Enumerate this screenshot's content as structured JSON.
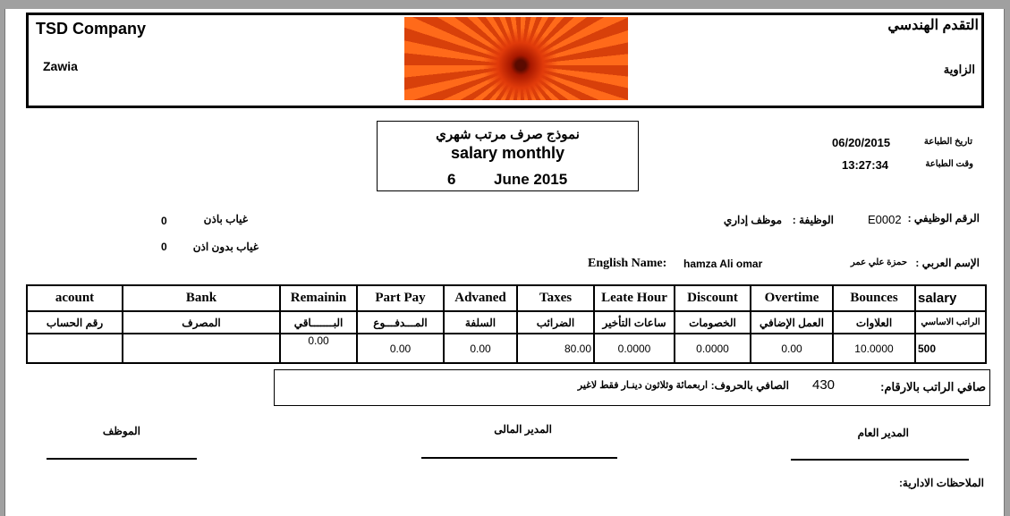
{
  "header": {
    "company_en": "TSD Company",
    "city_en": "Zawia",
    "company_ar": "التقدم الهندسي",
    "city_ar": "الزاوية"
  },
  "title": {
    "ar": "نموذج صرف مرتب شهري",
    "en": "salary monthly",
    "month_number": "6",
    "month_year": "June 2015"
  },
  "print_info": {
    "date_label": "تاريخ الطباعة",
    "date": "06/20/2015",
    "time_label": "وقت الطباعة",
    "time": "13:27:34"
  },
  "employee": {
    "id_label": "الرقم الوظيفي :",
    "id": "E0002",
    "job_label": "الوظيفة :",
    "job": "موظف إداري",
    "arabic_name_label": "الإسم العربي :",
    "arabic_name": "حمزة علي عمر",
    "english_name_label": "English Name:",
    "english_name": "hamza Ali omar",
    "absence_with_permission_label": "غياب باذن",
    "absence_with_permission": "0",
    "absence_without_permission_label": "غياب بدون اذن",
    "absence_without_permission": "0"
  },
  "table": {
    "headers_en": [
      "acount",
      "Bank",
      "Remainin",
      "Part Pay",
      "Advaned",
      "Taxes",
      "Leate Hour",
      "Discount",
      "Overtime",
      "Bounces",
      "salary"
    ],
    "headers_ar": [
      "رقم الحساب",
      "المصرف",
      "البـــــــاقي",
      "المـــدفـــوع",
      "السلفة",
      "الضرائب",
      "ساعات التأخير",
      "الخصومات",
      "العمل الإضافي",
      "العلاوات",
      "الراتب الاساسي"
    ],
    "values": [
      "",
      "",
      "0.00",
      "0.00",
      "0.00",
      "80.00",
      "0.0000",
      "0.0000",
      "0.00",
      "10.0000",
      "500"
    ]
  },
  "net": {
    "numeric_label": "صافي الراتب بالارقام:",
    "numeric": "430",
    "words_label": "الصافي بالحروف:",
    "words": "اربعمائة وثلاثون دينـار فقط لاغير"
  },
  "signatures": {
    "employee": "الموظف",
    "finance_manager": "المدير المالى",
    "general_manager": "المدير العام"
  },
  "notes_label": "الملاحظات الادارية:"
}
